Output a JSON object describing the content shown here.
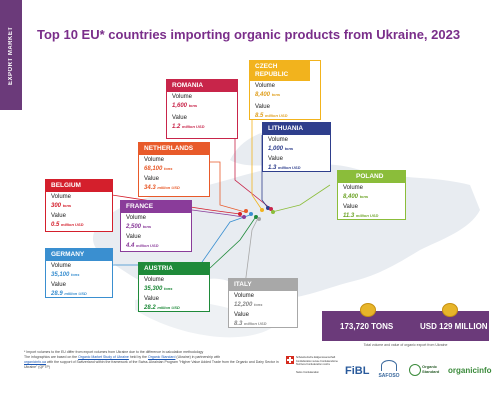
{
  "sidebar_label": "EXPORT MARKET",
  "title": "Top 10 EU* countries importing organic products from Ukraine, 2023",
  "labels": {
    "volume": "Volume",
    "value": "Value"
  },
  "countries": [
    {
      "key": "romania",
      "name": "ROMANIA",
      "volume": "1,600",
      "volume_unit": "tons",
      "value": "1.2",
      "value_unit": "million USD",
      "color": "#c8254a"
    },
    {
      "key": "czech",
      "name": "CZECH REPUBLIC",
      "volume": "8,400",
      "volume_unit": "tons",
      "value": "8.5",
      "value_unit": "million USD",
      "color": "#f2b31d"
    },
    {
      "key": "lithuania",
      "name": "LITHUANIA",
      "volume": "1,000",
      "volume_unit": "tons",
      "value": "1.3",
      "value_unit": "million USD",
      "color": "#2e3e8c"
    },
    {
      "key": "netherlands",
      "name": "NETHERLANDS",
      "volume": "68,100",
      "volume_unit": "tons",
      "value": "34.3",
      "value_unit": "million USD",
      "color": "#e85a2a"
    },
    {
      "key": "poland",
      "name": "POLAND",
      "volume": "8,400",
      "volume_unit": "tons",
      "value": "11.3",
      "value_unit": "million USD",
      "color": "#8bbd3a"
    },
    {
      "key": "belgium",
      "name": "BELGIUM",
      "volume": "300",
      "volume_unit": "tons",
      "value": "0.5",
      "value_unit": "million USD",
      "color": "#d41f2c"
    },
    {
      "key": "france",
      "name": "FRANCE",
      "volume": "2,500",
      "volume_unit": "tons",
      "value": "4.4",
      "value_unit": "million USD",
      "color": "#8a3c9a"
    },
    {
      "key": "germany",
      "name": "GERMANY",
      "volume": "35,100",
      "volume_unit": "tons",
      "value": "28.9",
      "value_unit": "million USD",
      "color": "#3a8fd0"
    },
    {
      "key": "austria",
      "name": "AUSTRIA",
      "volume": "35,300",
      "volume_unit": "tons",
      "value": "28.2",
      "value_unit": "million USD",
      "color": "#1f8a3a"
    },
    {
      "key": "italy",
      "name": "ITALY",
      "volume": "12,200",
      "volume_unit": "tons",
      "value": "8.3",
      "value_unit": "million USD",
      "color": "#a8a8a8"
    }
  ],
  "totals": {
    "tons": "173,720 TONS",
    "usd": "USD 129 MILLION",
    "caption": "Total volume and value of organic export from Ukraine"
  },
  "footnote": {
    "line1": "* Import volumes to the EU differ from export volumes from Ukraine due to the difference in calculation methodology",
    "line2": "The infographics are based on the",
    "link1": "Organic Market Study of Ukraine",
    "line2b": "held by the",
    "link2": "Organic Standard",
    "line2c": "(Ukraine) in partnership with",
    "link3": "organicinfo.ua",
    "line3": "with the support of Switzerland within the framework of the Swiss-Ukrainian Program \"Higher Value Added Trade from the Organic and Dairy Sector in Ukraine\" (QFTP)"
  },
  "logos": {
    "swiss": "Schweizerische Eidgenossenschaft Confédération suisse Confederazione Svizzera Confederaziun svizra",
    "swiss_sub": "Swiss Confederation",
    "fibl": "FiBL",
    "safoso": "SAFOSO",
    "organic_standard": "Organic Standard",
    "organicinfo": "organicinfo"
  }
}
